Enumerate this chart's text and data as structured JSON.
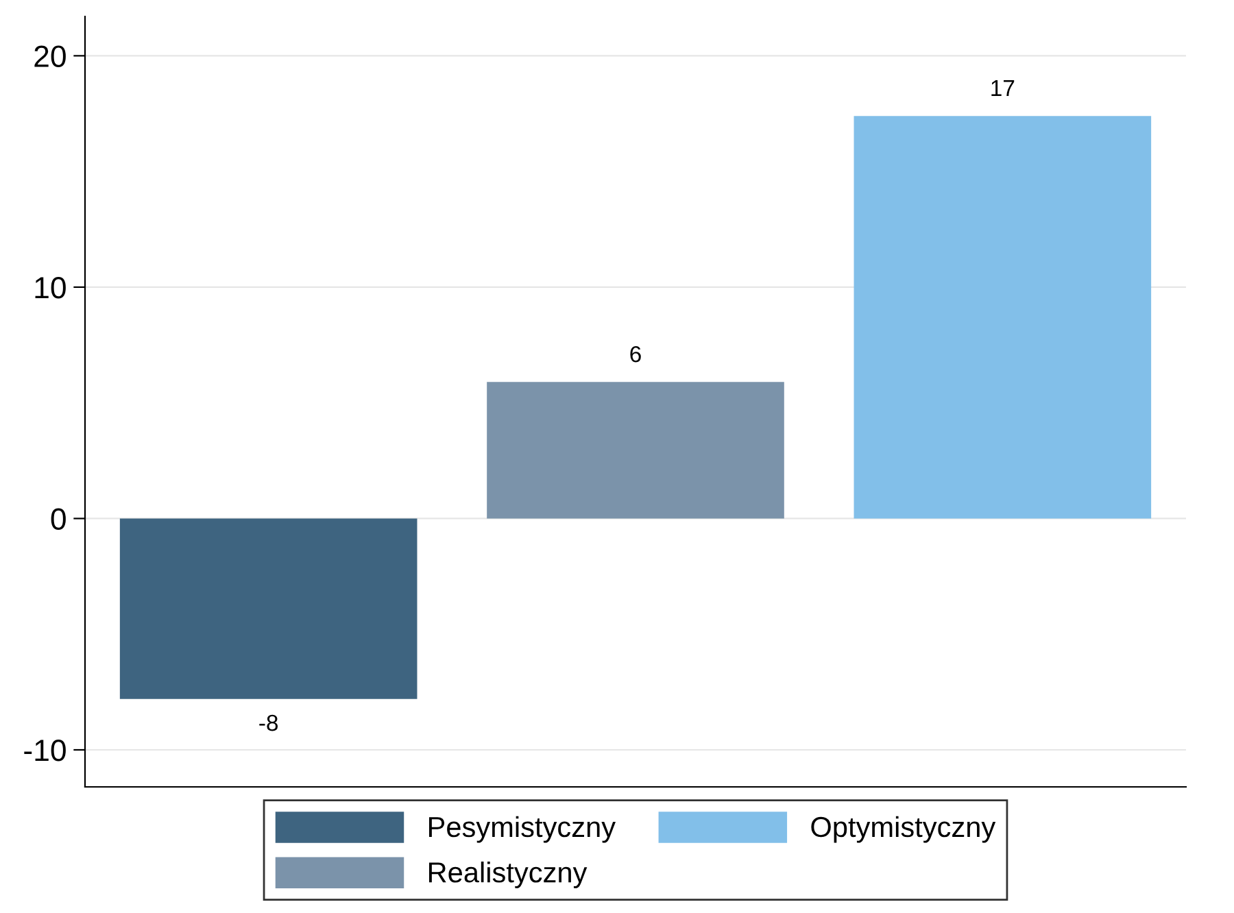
{
  "chart_data": {
    "type": "bar",
    "categories": [
      null,
      null,
      null
    ],
    "series": [
      {
        "name": "Pesymistyczny",
        "color": "#3e6480",
        "values": [
          -7.8,
          null,
          null
        ],
        "value_labels": [
          "-8",
          null,
          null
        ]
      },
      {
        "name": "Realistyczny",
        "color": "#7b93aa",
        "values": [
          null,
          5.9,
          null
        ],
        "value_labels": [
          null,
          "6",
          null
        ]
      },
      {
        "name": "Optymistyczny",
        "color": "#82bfe9",
        "values": [
          null,
          null,
          17.4
        ],
        "value_labels": [
          null,
          null,
          "17"
        ]
      }
    ],
    "ylim": [
      -11.6,
      21.7
    ],
    "yticks": [
      -10,
      0,
      10,
      20
    ],
    "grid": "y",
    "legend": "bottom"
  }
}
